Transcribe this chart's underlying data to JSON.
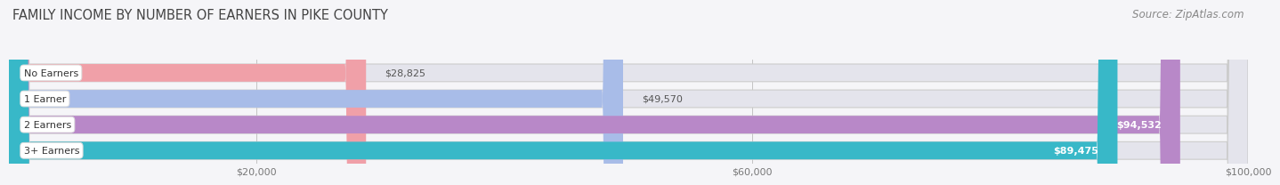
{
  "title": "FAMILY INCOME BY NUMBER OF EARNERS IN PIKE COUNTY",
  "source": "Source: ZipAtlas.com",
  "categories": [
    "No Earners",
    "1 Earner",
    "2 Earners",
    "3+ Earners"
  ],
  "values": [
    28825,
    49570,
    94532,
    89475
  ],
  "bar_colors": [
    "#f0a0a8",
    "#a8bce8",
    "#b888c8",
    "#38b8c8"
  ],
  "bar_bg_color": "#e4e4ec",
  "label_bg_color": "#ffffff",
  "label_colors": [
    "#444444",
    "#444444",
    "#444444",
    "#444444"
  ],
  "value_label_colors": [
    "#555555",
    "#555555",
    "#ffffff",
    "#ffffff"
  ],
  "value_labels": [
    "$28,825",
    "$49,570",
    "$94,532",
    "$89,475"
  ],
  "xmax": 100000,
  "xticks": [
    20000,
    60000,
    100000
  ],
  "xtick_labels": [
    "$20,000",
    "$60,000",
    "$100,000"
  ],
  "bg_color": "#f5f5f8",
  "title_fontsize": 10.5,
  "source_fontsize": 8.5,
  "bar_height": 0.68,
  "bar_gap": 0.32
}
